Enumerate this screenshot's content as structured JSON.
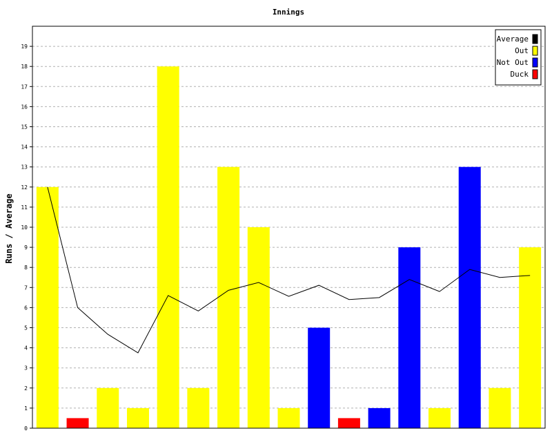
{
  "chart_data": {
    "type": "bar",
    "title": "Innings",
    "xlabel": "",
    "ylabel": "Runs / Average",
    "ylim": [
      0,
      20
    ],
    "yticks": [
      0,
      1,
      2,
      3,
      4,
      5,
      6,
      7,
      8,
      9,
      10,
      11,
      12,
      13,
      14,
      15,
      16,
      17,
      18,
      19
    ],
    "grid": true,
    "legend_position": "top-right",
    "legend": [
      {
        "name": "Average",
        "color": "#000000"
      },
      {
        "name": "Out",
        "color": "#ffff00"
      },
      {
        "name": "Not Out",
        "color": "#0000ff"
      },
      {
        "name": "Duck",
        "color": "#ff0000"
      }
    ],
    "innings": [
      {
        "runs": 12,
        "type": "Out"
      },
      {
        "runs": 0.5,
        "type": "Duck"
      },
      {
        "runs": 2,
        "type": "Out"
      },
      {
        "runs": 1,
        "type": "Out"
      },
      {
        "runs": 18,
        "type": "Out"
      },
      {
        "runs": 2,
        "type": "Out"
      },
      {
        "runs": 13,
        "type": "Out"
      },
      {
        "runs": 10,
        "type": "Out"
      },
      {
        "runs": 1,
        "type": "Out"
      },
      {
        "runs": 5,
        "type": "Not Out"
      },
      {
        "runs": 0.5,
        "type": "Duck"
      },
      {
        "runs": 1,
        "type": "Not Out"
      },
      {
        "runs": 9,
        "type": "Not Out"
      },
      {
        "runs": 1,
        "type": "Out"
      },
      {
        "runs": 13,
        "type": "Not Out"
      },
      {
        "runs": 2,
        "type": "Out"
      },
      {
        "runs": 9,
        "type": "Out"
      }
    ],
    "series": [
      {
        "name": "Average",
        "values": [
          12,
          6,
          4.67,
          3.75,
          6.6,
          5.83,
          6.86,
          7.25,
          6.56,
          7.11,
          6.4,
          6.5,
          7.4,
          6.8,
          7.9,
          7.5,
          7.6
        ]
      }
    ]
  }
}
